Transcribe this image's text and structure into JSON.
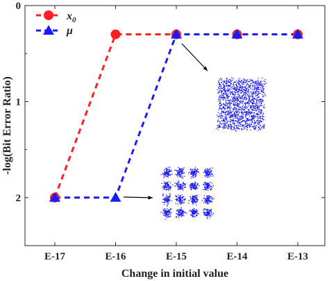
{
  "chart_data": {
    "type": "line",
    "categories": [
      "E-17",
      "E-16",
      "E-15",
      "E-14",
      "E-13"
    ],
    "xlabel": "Change in initial value",
    "ylabel": "-log(Bit Error Ratio)",
    "ylim": [
      0,
      2.5
    ],
    "y_inverted": true,
    "y_ticks": [
      "0",
      "1",
      "2"
    ],
    "grid": false,
    "legend_position": "top-left",
    "series": [
      {
        "name": "x",
        "subscript": "0",
        "values": [
          2,
          0.3,
          0.3,
          0.3,
          0.3
        ],
        "color": "#ff2020",
        "marker": "circle",
        "line_style": "dashed"
      },
      {
        "name": "μ",
        "subscript": "",
        "values": [
          2,
          2,
          0.3,
          0.3,
          0.3
        ],
        "color": "#1a1aff",
        "marker": "triangle",
        "line_style": "dashed"
      }
    ],
    "insets": [
      {
        "kind": "constellation-scatter",
        "pattern": "4x4 grid of clusters",
        "points_to_category": "E-16",
        "color": "#1a1aff"
      },
      {
        "kind": "constellation-scatter",
        "pattern": "single dense square cloud",
        "points_to_category": "E-15",
        "color": "#1a1aff"
      }
    ]
  }
}
